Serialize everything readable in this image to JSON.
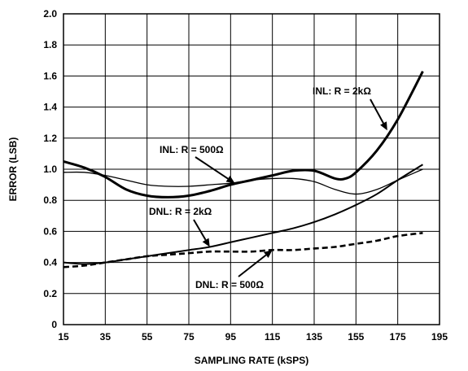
{
  "chart_data": {
    "type": "line",
    "xlabel": "SAMPLING RATE (kSPS)",
    "ylabel": "ERROR (LSB)",
    "xlim": [
      15,
      195
    ],
    "ylim": [
      0,
      2.0
    ],
    "xticks": [
      15,
      35,
      55,
      75,
      95,
      115,
      135,
      155,
      175,
      195
    ],
    "yticks": [
      "0",
      "0.2",
      "0.4",
      "0.6",
      "0.8",
      "1.0",
      "1.2",
      "1.4",
      "1.6",
      "1.8",
      "2.0"
    ],
    "grid": true,
    "series": [
      {
        "name": "INL: R = 2kΩ",
        "style": "thick",
        "x": [
          15,
          25,
          35,
          45,
          55,
          65,
          75,
          85,
          95,
          105,
          115,
          125,
          135,
          145,
          150,
          155,
          165,
          175,
          187
        ],
        "y": [
          1.05,
          1.01,
          0.95,
          0.87,
          0.83,
          0.82,
          0.83,
          0.86,
          0.9,
          0.93,
          0.96,
          0.99,
          0.99,
          0.94,
          0.94,
          0.98,
          1.12,
          1.32,
          1.63
        ]
      },
      {
        "name": "INL: R = 500Ω",
        "style": "thin",
        "x": [
          15,
          25,
          35,
          45,
          55,
          65,
          75,
          85,
          95,
          105,
          115,
          125,
          135,
          145,
          155,
          165,
          175,
          187
        ],
        "y": [
          0.98,
          0.98,
          0.96,
          0.93,
          0.9,
          0.89,
          0.89,
          0.9,
          0.91,
          0.93,
          0.94,
          0.94,
          0.92,
          0.87,
          0.84,
          0.87,
          0.93,
          1.0
        ]
      },
      {
        "name": "DNL: R = 2kΩ",
        "style": "solid",
        "x": [
          15,
          25,
          35,
          45,
          55,
          65,
          75,
          85,
          95,
          105,
          115,
          125,
          135,
          145,
          155,
          165,
          175,
          187
        ],
        "y": [
          0.4,
          0.39,
          0.4,
          0.42,
          0.44,
          0.46,
          0.48,
          0.5,
          0.53,
          0.56,
          0.59,
          0.62,
          0.66,
          0.71,
          0.77,
          0.84,
          0.93,
          1.03
        ]
      },
      {
        "name": "DNL: R = 500Ω",
        "style": "dashed",
        "x": [
          15,
          25,
          35,
          45,
          55,
          65,
          75,
          85,
          95,
          105,
          115,
          125,
          135,
          145,
          155,
          165,
          175,
          187
        ],
        "y": [
          0.37,
          0.38,
          0.4,
          0.42,
          0.44,
          0.45,
          0.46,
          0.47,
          0.47,
          0.47,
          0.48,
          0.48,
          0.49,
          0.5,
          0.52,
          0.54,
          0.57,
          0.59
        ]
      }
    ],
    "annotations": [
      {
        "text": "INL: R = 2kΩ",
        "target_x": 170,
        "target_y": 1.25
      },
      {
        "text": "INL: R = 500Ω",
        "target_x": 97,
        "target_y": 0.91
      },
      {
        "text": "DNL: R = 2kΩ",
        "target_x": 85,
        "target_y": 0.5
      },
      {
        "text": "DNL: R = 500Ω",
        "target_x": 115,
        "target_y": 0.48
      }
    ]
  }
}
